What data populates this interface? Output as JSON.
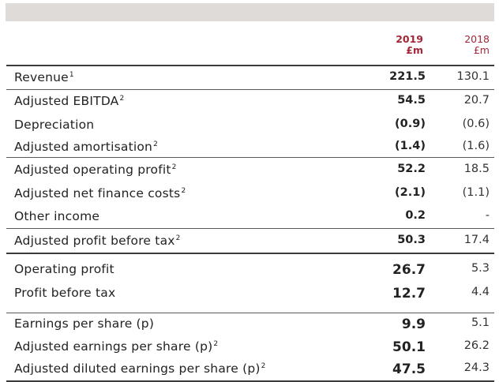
{
  "header": {
    "current_year": "2019",
    "current_unit": "£m",
    "prior_year": "2018",
    "prior_unit": "£m"
  },
  "rows": [
    {
      "label": "Revenue",
      "note": "1",
      "current": "221.5",
      "prior": "130.1"
    },
    {
      "label": "Adjusted EBITDA",
      "note": "2",
      "current": "54.5",
      "prior": "20.7"
    },
    {
      "label": "Depreciation",
      "note": "",
      "current": "(0.9)",
      "prior": "(0.6)"
    },
    {
      "label": "Adjusted amortisation",
      "note": "2",
      "current": "(1.4)",
      "prior": "(1.6)"
    },
    {
      "label": "Adjusted operating profit",
      "note": "2",
      "current": "52.2",
      "prior": "18.5"
    },
    {
      "label": "Adjusted net finance costs",
      "note": "2",
      "current": "(2.1)",
      "prior": "(1.1)"
    },
    {
      "label": "Other income",
      "note": "",
      "current": "0.2",
      "prior": "-"
    },
    {
      "label": "Adjusted profit before tax",
      "note": "2",
      "current": "50.3",
      "prior": "17.4"
    },
    {
      "label": "Operating profit",
      "note": "",
      "current": "26.7",
      "prior": "5.3"
    },
    {
      "label": "Profit before tax",
      "note": "",
      "current": "12.7",
      "prior": "4.4"
    },
    {
      "label": "Earnings per share (p)",
      "note": "",
      "current": "9.9",
      "prior": "5.1"
    },
    {
      "label": "Adjusted earnings per share (p)",
      "note": "2",
      "current": "50.1",
      "prior": "26.2"
    },
    {
      "label": "Adjusted diluted earnings per share (p)",
      "note": "2",
      "current": "47.5",
      "prior": "24.3"
    }
  ]
}
